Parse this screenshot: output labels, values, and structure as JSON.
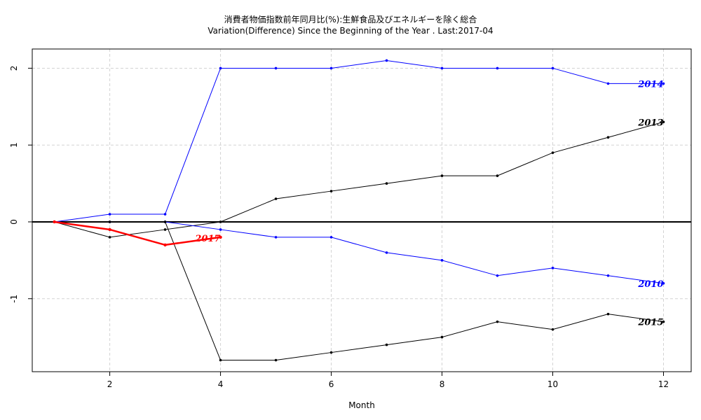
{
  "chart_data": {
    "type": "line",
    "title": "消費者物価指数前年同月比(%):生鮮食品及びエネルギーを除く総合",
    "subtitle": "Variation(Difference) Since the Beginning of the Year . Last:2017-04",
    "xlabel": "Month",
    "ylabel": "",
    "xlim": [
      0.6,
      12.5
    ],
    "ylim": [
      -1.95,
      2.25
    ],
    "x_ticks": [
      2,
      4,
      6,
      8,
      10,
      12
    ],
    "y_ticks": [
      -1,
      0,
      1,
      2
    ],
    "grid": true,
    "series": [
      {
        "name": "2014",
        "color": "#0000ff",
        "label_size": "normal",
        "x": [
          1,
          2,
          3,
          4,
          5,
          6,
          7,
          8,
          9,
          10,
          11,
          12
        ],
        "y": [
          0,
          0.1,
          0.1,
          2.0,
          2.0,
          2.0,
          2.1,
          2.0,
          2.0,
          2.0,
          1.8,
          1.8
        ]
      },
      {
        "name": "2013",
        "color": "#000000",
        "label_size": "normal",
        "x": [
          1,
          2,
          3,
          4,
          5,
          6,
          7,
          8,
          9,
          10,
          11,
          12
        ],
        "y": [
          0,
          -0.2,
          -0.1,
          0,
          0.3,
          0.4,
          0.5,
          0.6,
          0.6,
          0.9,
          1.1,
          1.3
        ]
      },
      {
        "name": "2010",
        "color": "#0000ff",
        "label_size": "normal",
        "x": [
          1,
          2,
          3,
          4,
          5,
          6,
          7,
          8,
          9,
          10,
          11,
          12
        ],
        "y": [
          0,
          0,
          0,
          -0.1,
          -0.2,
          -0.2,
          -0.4,
          -0.5,
          -0.7,
          -0.6,
          -0.7,
          -0.8
        ]
      },
      {
        "name": "2015",
        "color": "#000000",
        "label_size": "normal",
        "x": [
          1,
          2,
          3,
          4,
          5,
          6,
          7,
          8,
          9,
          10,
          11,
          12
        ],
        "y": [
          0,
          0,
          0,
          -1.8,
          -1.8,
          -1.7,
          -1.6,
          -1.5,
          -1.3,
          -1.4,
          -1.2,
          -1.3
        ]
      },
      {
        "name": "2017",
        "color": "#ff0000",
        "label_size": "large",
        "x": [
          1,
          2,
          3,
          4
        ],
        "y": [
          0,
          -0.1,
          -0.3,
          -0.2
        ]
      }
    ]
  }
}
